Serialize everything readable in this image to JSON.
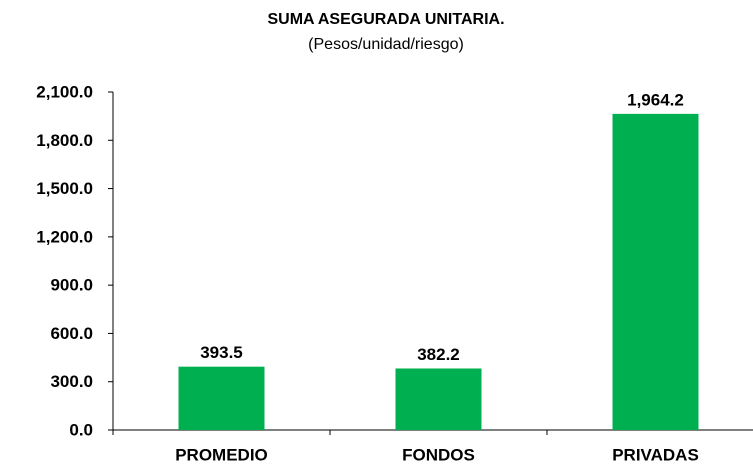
{
  "chart_data": {
    "type": "bar",
    "title": "SUMA ASEGURADA UNITARIA.",
    "subtitle": "(Pesos/unidad/riesgo)",
    "categories": [
      "PROMEDIO",
      "FONDOS",
      "PRIVADAS"
    ],
    "values": [
      393.5,
      382.2,
      1964.2
    ],
    "value_labels": [
      "393.5",
      "382.2",
      "1,964.2"
    ],
    "color": "#00b050",
    "ylim": [
      0,
      2100
    ],
    "yticks": [
      {
        "value": 0,
        "label": "0.0"
      },
      {
        "value": 300,
        "label": "300.0"
      },
      {
        "value": 600,
        "label": "600.0"
      },
      {
        "value": 900,
        "label": "900.0"
      },
      {
        "value": 1200,
        "label": "1,200.0"
      },
      {
        "value": 1500,
        "label": "1,500.0"
      },
      {
        "value": 1800,
        "label": "1,800.0"
      },
      {
        "value": 2100,
        "label": "2,100.0"
      }
    ],
    "grid": false
  }
}
